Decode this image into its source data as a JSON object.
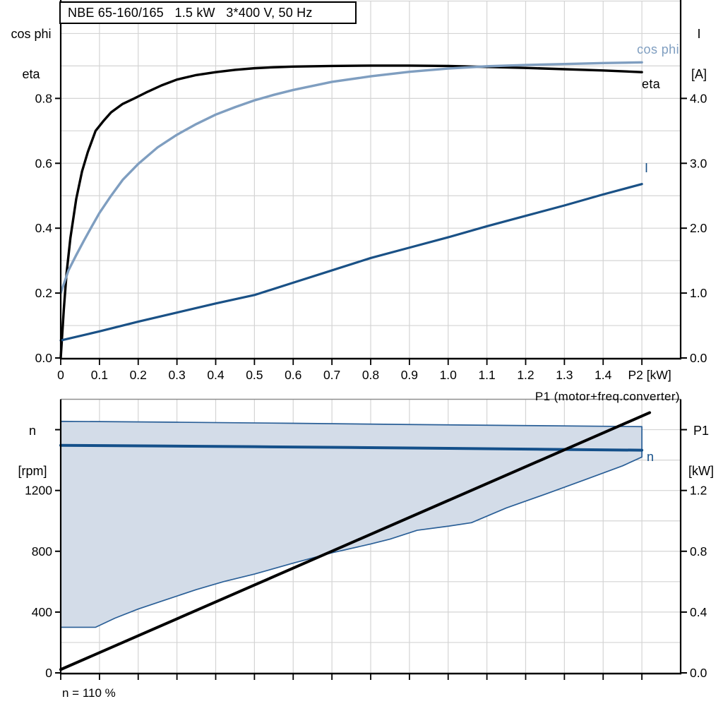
{
  "title_box": "NBE 65-160/165   1.5 kW   3*400 V, 50 Hz",
  "annotations": {
    "speed_setting": "n = 110 %"
  },
  "colors": {
    "eta": "#000000",
    "cos_phi": "#7f9ec0",
    "current": "#1a5186",
    "n": "#14508a",
    "p1": "#000000",
    "region_fill": "#d3dce8",
    "region_border": "#2a5f97",
    "grid": "#d4d4d4",
    "axis": "#000000",
    "top_border": "#8f8f8f",
    "text": "#000000"
  },
  "chart_data": [
    {
      "name": "motor-performance",
      "type": "line",
      "grid": true,
      "x": {
        "label": "P2 [kW]",
        "min": 0,
        "max": 1.6,
        "grid_step": 0.1,
        "tick_values": [
          0,
          0.1,
          0.2,
          0.3,
          0.4,
          0.5,
          0.6,
          0.7,
          0.8,
          0.9,
          1.0,
          1.1,
          1.2,
          1.3,
          1.4,
          1.5
        ],
        "tick_labels": [
          "0",
          "0.1",
          "0.2",
          "0.3",
          "0.4",
          "0.5",
          "0.6",
          "0.7",
          "0.8",
          "0.9",
          "1.0",
          "1.1",
          "1.2",
          "1.3",
          "1.4",
          ""
        ]
      },
      "y_left": {
        "title_lines": [
          "cos phi",
          "eta"
        ],
        "min": 0,
        "max": 1.1,
        "grid_step": 0.1,
        "tick_values": [
          0,
          0.2,
          0.4,
          0.6,
          0.8
        ],
        "tick_labels": [
          "0.0",
          "0.2",
          "0.4",
          "0.6",
          "0.8"
        ]
      },
      "y_right": {
        "title_lines": [
          "I",
          "[A]"
        ],
        "min": 0,
        "max": 5.5,
        "tick_values": [
          0,
          1,
          2,
          3,
          4
        ],
        "tick_labels": [
          "0.0",
          "1.0",
          "2.0",
          "3.0",
          "4.0"
        ]
      },
      "series": [
        {
          "name": "eta",
          "label": "eta",
          "axis": "left",
          "color": "eta",
          "width": 3.4,
          "points": [
            [
              0,
              0
            ],
            [
              0.008,
              0.15
            ],
            [
              0.015,
              0.26
            ],
            [
              0.025,
              0.37
            ],
            [
              0.04,
              0.49
            ],
            [
              0.055,
              0.575
            ],
            [
              0.07,
              0.635
            ],
            [
              0.09,
              0.7
            ],
            [
              0.11,
              0.73
            ],
            [
              0.13,
              0.757
            ],
            [
              0.16,
              0.783
            ],
            [
              0.19,
              0.8
            ],
            [
              0.22,
              0.818
            ],
            [
              0.26,
              0.84
            ],
            [
              0.3,
              0.858
            ],
            [
              0.35,
              0.872
            ],
            [
              0.4,
              0.881
            ],
            [
              0.45,
              0.888
            ],
            [
              0.5,
              0.893
            ],
            [
              0.55,
              0.896
            ],
            [
              0.6,
              0.898
            ],
            [
              0.7,
              0.9
            ],
            [
              0.8,
              0.901
            ],
            [
              0.9,
              0.901
            ],
            [
              1.0,
              0.9
            ],
            [
              1.1,
              0.897
            ],
            [
              1.2,
              0.894
            ],
            [
              1.3,
              0.89
            ],
            [
              1.4,
              0.886
            ],
            [
              1.5,
              0.881
            ]
          ]
        },
        {
          "name": "cos-phi",
          "label": "cos phi",
          "axis": "left",
          "color": "cos_phi",
          "width": 3.4,
          "points": [
            [
              0,
              0.2
            ],
            [
              0.02,
              0.27
            ],
            [
              0.04,
              0.317
            ],
            [
              0.06,
              0.362
            ],
            [
              0.08,
              0.405
            ],
            [
              0.1,
              0.447
            ],
            [
              0.13,
              0.5
            ],
            [
              0.16,
              0.549
            ],
            [
              0.2,
              0.598
            ],
            [
              0.25,
              0.649
            ],
            [
              0.3,
              0.688
            ],
            [
              0.35,
              0.721
            ],
            [
              0.4,
              0.75
            ],
            [
              0.45,
              0.773
            ],
            [
              0.5,
              0.794
            ],
            [
              0.55,
              0.811
            ],
            [
              0.6,
              0.826
            ],
            [
              0.7,
              0.851
            ],
            [
              0.8,
              0.868
            ],
            [
              0.9,
              0.882
            ],
            [
              1.0,
              0.892
            ],
            [
              1.1,
              0.899
            ],
            [
              1.2,
              0.903
            ],
            [
              1.3,
              0.906
            ],
            [
              1.4,
              0.909
            ],
            [
              1.5,
              0.911
            ]
          ]
        },
        {
          "name": "current",
          "label": "I",
          "axis": "right",
          "color": "current",
          "width": 3.2,
          "points": [
            [
              0,
              0.27
            ],
            [
              0.1,
              0.41
            ],
            [
              0.2,
              0.56
            ],
            [
              0.3,
              0.7
            ],
            [
              0.4,
              0.84
            ],
            [
              0.5,
              0.97
            ],
            [
              0.6,
              1.16
            ],
            [
              0.7,
              1.35
            ],
            [
              0.8,
              1.54
            ],
            [
              0.9,
              1.7
            ],
            [
              1.0,
              1.86
            ],
            [
              1.1,
              2.03
            ],
            [
              1.2,
              2.19
            ],
            [
              1.3,
              2.35
            ],
            [
              1.4,
              2.52
            ],
            [
              1.5,
              2.68
            ]
          ]
        }
      ]
    },
    {
      "name": "speed-range",
      "type": "line",
      "grid": true,
      "top_border": true,
      "x": {
        "label": "",
        "min": 0,
        "max": 1.6,
        "grid_step": 0.1,
        "tick_values": [
          0,
          0.1,
          0.2,
          0.3,
          0.4,
          0.5,
          0.6,
          0.7,
          0.8,
          0.9,
          1.0,
          1.1,
          1.2,
          1.3,
          1.4,
          1.5
        ],
        "tick_labels": [
          "",
          "",
          "",
          "",
          "",
          "",
          "",
          "",
          "",
          "",
          "",
          "",
          "",
          "",
          "",
          ""
        ]
      },
      "y_left": {
        "title_lines": [
          "n",
          "[rpm]"
        ],
        "min": 0,
        "max": 1800,
        "grid_step": 200,
        "tick_values": [
          0,
          400,
          800,
          1200,
          1600
        ],
        "tick_labels": [
          "0",
          "400",
          "800",
          "1200",
          ""
        ]
      },
      "y_right": {
        "title_lines": [
          "P1",
          "[kW]"
        ],
        "min": 0,
        "max": 1.8,
        "tick_values": [
          0,
          0.4,
          0.8,
          1.2,
          1.6
        ],
        "tick_labels": [
          "0.0",
          "0.4",
          "0.8",
          "1.2",
          ""
        ]
      },
      "region": {
        "name": "speed-control-range",
        "fill": "region_fill",
        "stroke": "region_border",
        "upper": [
          [
            0,
            1655
          ],
          [
            0.3,
            1649
          ],
          [
            0.6,
            1642
          ],
          [
            0.9,
            1634
          ],
          [
            1.2,
            1627
          ],
          [
            1.5,
            1620
          ]
        ],
        "lower": [
          [
            0,
            300
          ],
          [
            0.09,
            300
          ],
          [
            0.14,
            360
          ],
          [
            0.2,
            420
          ],
          [
            0.27,
            480
          ],
          [
            0.35,
            548
          ],
          [
            0.42,
            600
          ],
          [
            0.5,
            650
          ],
          [
            0.6,
            722
          ],
          [
            0.7,
            790
          ],
          [
            0.8,
            848
          ],
          [
            0.85,
            880
          ],
          [
            0.92,
            938
          ],
          [
            1.0,
            965
          ],
          [
            1.06,
            988
          ],
          [
            1.15,
            1085
          ],
          [
            1.25,
            1175
          ],
          [
            1.35,
            1268
          ],
          [
            1.45,
            1362
          ],
          [
            1.5,
            1420
          ]
        ]
      },
      "series": [
        {
          "name": "n",
          "label": "n",
          "axis": "left",
          "color": "n",
          "width": 4,
          "points": [
            [
              0,
              1497
            ],
            [
              0.25,
              1493
            ],
            [
              0.5,
              1488
            ],
            [
              0.75,
              1483
            ],
            [
              1.0,
              1477
            ],
            [
              1.25,
              1471
            ],
            [
              1.5,
              1465
            ]
          ]
        },
        {
          "name": "p1",
          "label": "P1 (motor+freq.converter)",
          "axis": "right",
          "color": "p1",
          "width": 4,
          "points": [
            [
              0,
              0.022
            ],
            [
              0.5,
              0.578
            ],
            [
              1.0,
              1.134
            ],
            [
              1.52,
              1.712
            ]
          ]
        }
      ]
    }
  ]
}
